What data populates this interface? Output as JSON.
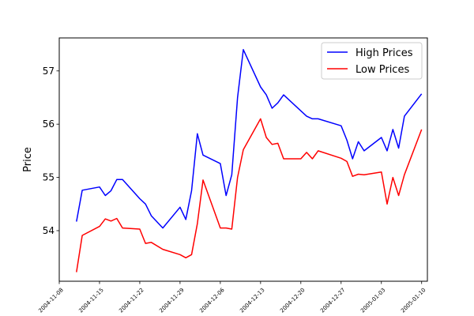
{
  "chart_data": {
    "type": "line",
    "title": "",
    "xlabel": "",
    "ylabel": "Price",
    "x_ticks": [
      "2004-11-08",
      "2004-11-15",
      "2004-11-22",
      "2004-11-29",
      "2004-12-06",
      "2004-12-13",
      "2004-12-20",
      "2004-12-27",
      "2005-01-03",
      "2005-01-10"
    ],
    "xlim": [
      "2004-11-08",
      "2005-01-11"
    ],
    "y_ticks": [
      54,
      55,
      56,
      57
    ],
    "ylim": [
      53.05,
      57.62
    ],
    "grid": false,
    "legend_position": "top-right",
    "series": [
      {
        "name": "High Prices",
        "color": "#0000ff",
        "points": [
          [
            "2004-11-11",
            54.17
          ],
          [
            "2004-11-12",
            54.76
          ],
          [
            "2004-11-15",
            54.82
          ],
          [
            "2004-11-16",
            54.66
          ],
          [
            "2004-11-17",
            54.75
          ],
          [
            "2004-11-18",
            54.96
          ],
          [
            "2004-11-19",
            54.96
          ],
          [
            "2004-11-22",
            54.6
          ],
          [
            "2004-11-23",
            54.5
          ],
          [
            "2004-11-24",
            54.28
          ],
          [
            "2004-11-26",
            54.05
          ],
          [
            "2004-11-29",
            54.44
          ],
          [
            "2004-11-30",
            54.21
          ],
          [
            "2004-12-01",
            54.75
          ],
          [
            "2004-12-02",
            55.82
          ],
          [
            "2004-12-03",
            55.42
          ],
          [
            "2004-12-06",
            55.26
          ],
          [
            "2004-12-07",
            54.66
          ],
          [
            "2004-12-08",
            55.05
          ],
          [
            "2004-12-09",
            56.5
          ],
          [
            "2004-12-10",
            57.4
          ],
          [
            "2004-12-13",
            56.7
          ],
          [
            "2004-12-14",
            56.55
          ],
          [
            "2004-12-15",
            56.3
          ],
          [
            "2004-12-16",
            56.4
          ],
          [
            "2004-12-17",
            56.55
          ],
          [
            "2004-12-20",
            56.25
          ],
          [
            "2004-12-21",
            56.15
          ],
          [
            "2004-12-22",
            56.1
          ],
          [
            "2004-12-23",
            56.1
          ],
          [
            "2004-12-27",
            55.97
          ],
          [
            "2004-12-28",
            55.7
          ],
          [
            "2004-12-29",
            55.35
          ],
          [
            "2004-12-30",
            55.67
          ],
          [
            "2004-12-31",
            55.5
          ],
          [
            "2005-01-03",
            55.75
          ],
          [
            "2005-01-04",
            55.5
          ],
          [
            "2005-01-05",
            55.9
          ],
          [
            "2005-01-06",
            55.55
          ],
          [
            "2005-01-07",
            56.15
          ],
          [
            "2005-01-10",
            56.57
          ]
        ]
      },
      {
        "name": "Low Prices",
        "color": "#ff0000",
        "points": [
          [
            "2004-11-11",
            53.22
          ],
          [
            "2004-11-12",
            53.91
          ],
          [
            "2004-11-15",
            54.08
          ],
          [
            "2004-11-16",
            54.22
          ],
          [
            "2004-11-17",
            54.18
          ],
          [
            "2004-11-18",
            54.23
          ],
          [
            "2004-11-19",
            54.05
          ],
          [
            "2004-11-22",
            54.03
          ],
          [
            "2004-11-23",
            53.76
          ],
          [
            "2004-11-24",
            53.78
          ],
          [
            "2004-11-26",
            53.65
          ],
          [
            "2004-11-29",
            53.55
          ],
          [
            "2004-11-30",
            53.49
          ],
          [
            "2004-12-01",
            53.55
          ],
          [
            "2004-12-02",
            54.13
          ],
          [
            "2004-12-03",
            54.95
          ],
          [
            "2004-12-06",
            54.05
          ],
          [
            "2004-12-07",
            54.05
          ],
          [
            "2004-12-08",
            54.03
          ],
          [
            "2004-12-09",
            55.0
          ],
          [
            "2004-12-10",
            55.52
          ],
          [
            "2004-12-13",
            56.1
          ],
          [
            "2004-12-14",
            55.75
          ],
          [
            "2004-12-15",
            55.62
          ],
          [
            "2004-12-16",
            55.64
          ],
          [
            "2004-12-17",
            55.35
          ],
          [
            "2004-12-20",
            55.35
          ],
          [
            "2004-12-21",
            55.47
          ],
          [
            "2004-12-22",
            55.35
          ],
          [
            "2004-12-23",
            55.5
          ],
          [
            "2004-12-27",
            55.36
          ],
          [
            "2004-12-28",
            55.3
          ],
          [
            "2004-12-29",
            55.02
          ],
          [
            "2004-12-30",
            55.06
          ],
          [
            "2004-12-31",
            55.05
          ],
          [
            "2005-01-03",
            55.1
          ],
          [
            "2005-01-04",
            54.5
          ],
          [
            "2005-01-05",
            55.0
          ],
          [
            "2005-01-06",
            54.66
          ],
          [
            "2005-01-07",
            55.05
          ],
          [
            "2005-01-10",
            55.9
          ]
        ]
      }
    ]
  }
}
